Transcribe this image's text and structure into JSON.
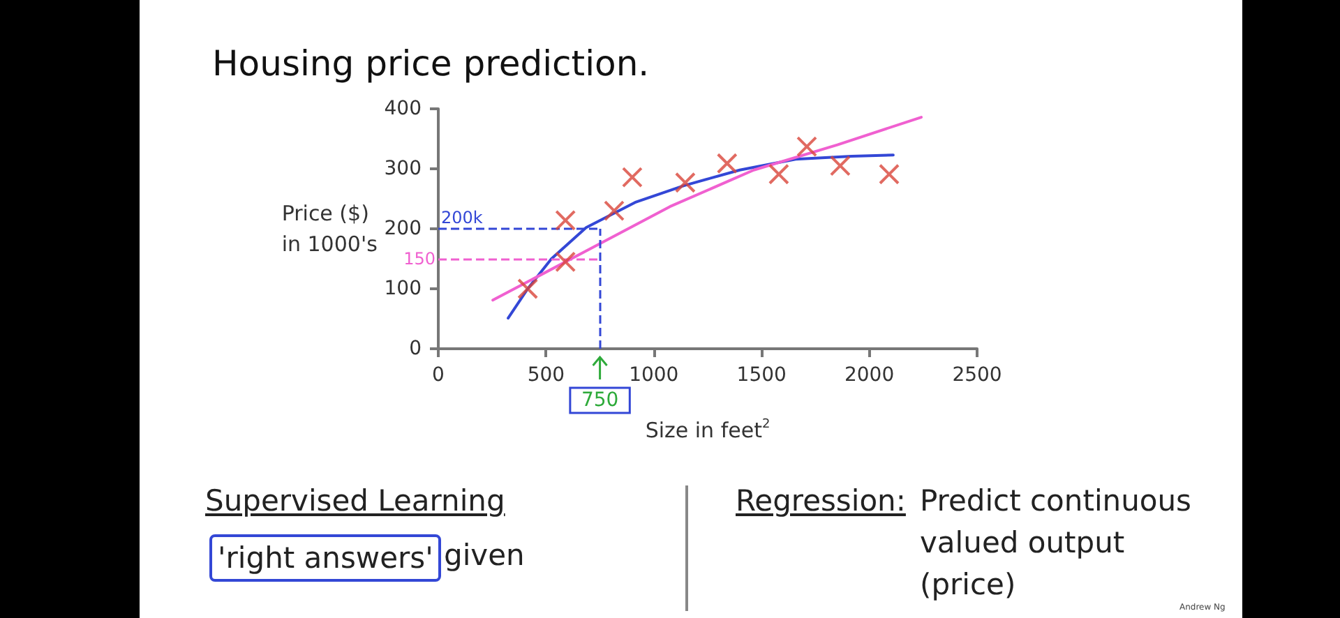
{
  "chart_data": {
    "type": "scatter",
    "title": "Housing price prediction.",
    "xlabel": "Size in feet$^{2}$",
    "ylabel": "Price ($)\nin 1000's",
    "xlim": [
      0,
      2500
    ],
    "xticks": [
      0,
      500,
      1000,
      1500,
      2000,
      2500
    ],
    "ylim": [
      0,
      400
    ],
    "yticks": [
      0,
      100,
      200,
      300,
      400
    ],
    "grid": false,
    "series": [
      {
        "marker": "cross",
        "color": "#d9453a",
        "x": [
          415,
          590,
          590,
          816,
          900,
          1146,
          1340,
          1580,
          1710,
          1865,
          2092
        ],
        "values": [
          100,
          145,
          214,
          230,
          286,
          277,
          309,
          291,
          337,
          305,
          291
        ]
      },
      {
        "type": "line",
        "marker": "none",
        "color": "#3347d6",
        "x": [
          324,
          415,
          525,
          686,
          913,
          1140,
          1399,
          1658,
          1917,
          2111
        ],
        "values": [
          51,
          100,
          150,
          202,
          244,
          272,
          298,
          316,
          321,
          323
        ]
      },
      {
        "type": "line",
        "marker": "none",
        "color": "#f060d0",
        "x": [
          253,
          686,
          1075,
          1464,
          1852,
          2241
        ],
        "values": [
          81,
          163,
          237,
          298,
          340,
          386
        ]
      }
    ],
    "ref_lines": [
      {
        "axis": "y",
        "value": 200,
        "label": "200k",
        "color": "#3347d6",
        "line_style": "dashed"
      },
      {
        "axis": "y",
        "value": 150,
        "label": "150",
        "color": "#f060d0",
        "line_style": "dashed"
      },
      {
        "axis": "x",
        "value": 750,
        "label": "750",
        "color": "#3347d6",
        "line_style": "dashed"
      }
    ],
    "annotations": [
      "Supervised Learning",
      "'right answers'",
      "given",
      "Regression:",
      "Predict continuous valued output (price)",
      "Andrew Ng"
    ]
  }
}
